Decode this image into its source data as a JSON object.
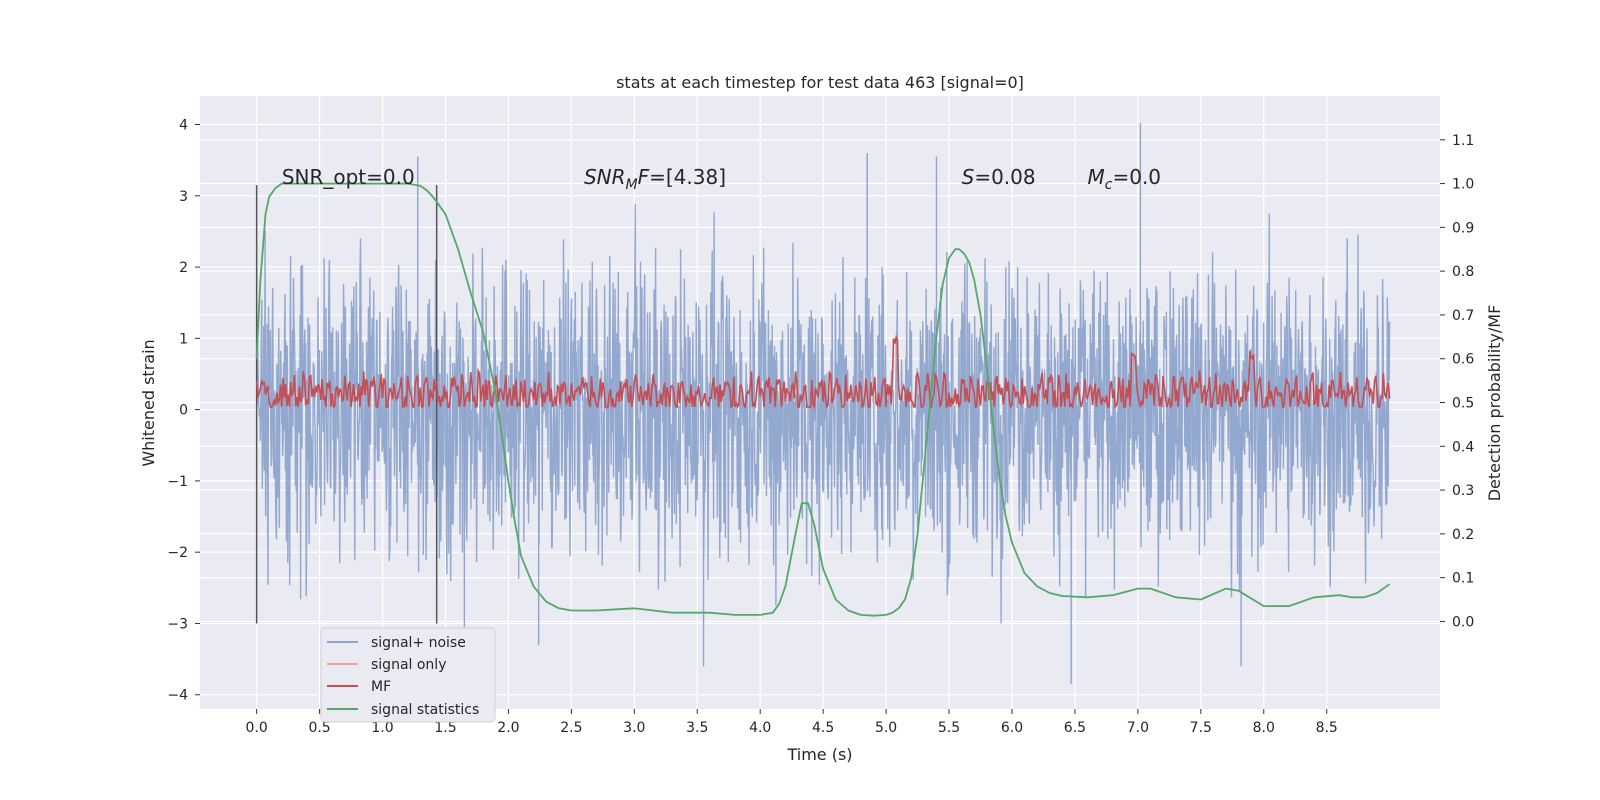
{
  "chart_data": {
    "type": "line",
    "title": "stats at each timestep for test data 463 [signal=0]",
    "xlabel": "Time (s)",
    "ylabel_left": "Whitened strain",
    "ylabel_right": "Detection probability/MF",
    "xlim": [
      -0.45,
      9.4
    ],
    "ylim_left": [
      -4.2,
      4.4
    ],
    "ylim_right": [
      -0.2,
      1.2
    ],
    "x_ticks": [
      0.0,
      0.5,
      1.0,
      1.5,
      2.0,
      2.5,
      3.0,
      3.5,
      4.0,
      4.5,
      5.0,
      5.5,
      6.0,
      6.5,
      7.0,
      7.5,
      8.0,
      8.5
    ],
    "x_tick_labels": [
      "0.0",
      "0.5",
      "1.0",
      "1.5",
      "2.0",
      "2.5",
      "3.0",
      "3.5",
      "4.0",
      "4.5",
      "5.0",
      "5.5",
      "6.0",
      "6.5",
      "7.0",
      "7.5",
      "8.0",
      "8.5"
    ],
    "y_left_ticks": [
      -4,
      -3,
      -2,
      -1,
      0,
      1,
      2,
      3,
      4
    ],
    "y_left_tick_labels": [
      "−4",
      "−3",
      "−2",
      "−1",
      "0",
      "1",
      "2",
      "3",
      "4"
    ],
    "y_right_ticks": [
      0.0,
      0.1,
      0.2,
      0.3,
      0.4,
      0.5,
      0.6,
      0.7,
      0.8,
      0.9,
      1.0,
      1.1
    ],
    "y_right_tick_labels": [
      "0.0",
      "0.1",
      "0.2",
      "0.3",
      "0.4",
      "0.5",
      "0.6",
      "0.7",
      "0.8",
      "0.9",
      "1.0",
      "1.1"
    ],
    "grid": true,
    "legend_position": "lower-left",
    "colors": {
      "signal_noise": "#8ea4cc",
      "signal_only": "#e8a88e",
      "mf": "#c44e52",
      "statistics": "#55a868",
      "background": "#eaeaf2",
      "vline": "#555555"
    },
    "series": [
      {
        "name": "signal+ noise",
        "axis": "left",
        "style": "dense-noise",
        "x_range": [
          0.0,
          9.0
        ],
        "core_range": [
          -1.3,
          1.3
        ],
        "envelope": [
          -3.0,
          3.2
        ],
        "extremes": [
          [
            1.28,
            3.55
          ],
          [
            4.85,
            3.6
          ],
          [
            5.4,
            3.55
          ],
          [
            7.02,
            4.02
          ],
          [
            3.55,
            -3.6
          ],
          [
            6.47,
            -3.85
          ],
          [
            7.82,
            -3.6
          ],
          [
            1.65,
            -3.05
          ],
          [
            2.24,
            -3.3
          ]
        ]
      },
      {
        "name": "signal only",
        "axis": "left",
        "x": [],
        "y": []
      },
      {
        "name": "MF",
        "axis": "right",
        "style": "noisy-band",
        "x_range": [
          0.0,
          9.0
        ],
        "baseline": 0.52,
        "range": [
          0.49,
          0.62
        ],
        "spikes": [
          [
            5.07,
            0.65
          ],
          [
            6.97,
            0.62
          ],
          [
            7.9,
            0.62
          ]
        ]
      },
      {
        "name": "signal statistics",
        "axis": "right",
        "x": [
          0.0,
          0.03,
          0.07,
          0.1,
          0.15,
          0.2,
          0.3,
          0.5,
          0.8,
          1.0,
          1.2,
          1.3,
          1.35,
          1.4,
          1.5,
          1.6,
          1.7,
          1.8,
          1.9,
          2.0,
          2.05,
          2.1,
          2.2,
          2.3,
          2.4,
          2.5,
          2.7,
          3.0,
          3.3,
          3.6,
          3.8,
          4.0,
          4.1,
          4.15,
          4.2,
          4.28,
          4.33,
          4.38,
          4.43,
          4.5,
          4.6,
          4.7,
          4.8,
          4.9,
          5.0,
          5.05,
          5.1,
          5.15,
          5.2,
          5.25,
          5.3,
          5.35,
          5.4,
          5.45,
          5.5,
          5.55,
          5.58,
          5.62,
          5.66,
          5.7,
          5.75,
          5.8,
          5.85,
          5.9,
          5.95,
          6.0,
          6.1,
          6.2,
          6.3,
          6.4,
          6.6,
          6.8,
          7.0,
          7.1,
          7.3,
          7.5,
          7.7,
          7.8,
          8.0,
          8.2,
          8.4,
          8.6,
          8.7,
          8.8,
          8.9,
          9.0
        ],
        "y": [
          0.6,
          0.78,
          0.93,
          0.97,
          0.99,
          1.0,
          1.0,
          1.0,
          1.0,
          1.0,
          1.0,
          0.995,
          0.985,
          0.97,
          0.93,
          0.85,
          0.75,
          0.66,
          0.52,
          0.32,
          0.23,
          0.15,
          0.08,
          0.045,
          0.03,
          0.025,
          0.025,
          0.03,
          0.02,
          0.02,
          0.015,
          0.015,
          0.02,
          0.04,
          0.08,
          0.2,
          0.27,
          0.27,
          0.22,
          0.12,
          0.05,
          0.025,
          0.015,
          0.013,
          0.015,
          0.02,
          0.03,
          0.05,
          0.1,
          0.2,
          0.35,
          0.5,
          0.65,
          0.77,
          0.83,
          0.85,
          0.85,
          0.84,
          0.82,
          0.78,
          0.7,
          0.58,
          0.45,
          0.33,
          0.24,
          0.18,
          0.11,
          0.08,
          0.065,
          0.058,
          0.055,
          0.06,
          0.075,
          0.075,
          0.055,
          0.05,
          0.075,
          0.07,
          0.035,
          0.035,
          0.055,
          0.06,
          0.055,
          0.055,
          0.065,
          0.085
        ]
      }
    ],
    "vlines": [
      {
        "x": 0.0,
        "y_from": -3.0,
        "y_to": 3.15
      },
      {
        "x": 1.43,
        "y_from": -3.0,
        "y_to": 3.15
      }
    ],
    "annotations": [
      {
        "text": "SNR_opt=0.0",
        "x": 0.2,
        "y": 3.15,
        "italic": false
      },
      {
        "text": "SNR",
        "sub": "M",
        "suffix": "F=[4.38]",
        "x": 2.6,
        "y": 3.15,
        "italic": true
      },
      {
        "text": "S",
        "sub": "",
        "suffix": "=0.08",
        "x": 5.6,
        "y": 3.15,
        "italic": true
      },
      {
        "text": "M",
        "sub": "c",
        "suffix": "=0.0",
        "x": 6.6,
        "y": 3.15,
        "italic": true
      }
    ]
  }
}
